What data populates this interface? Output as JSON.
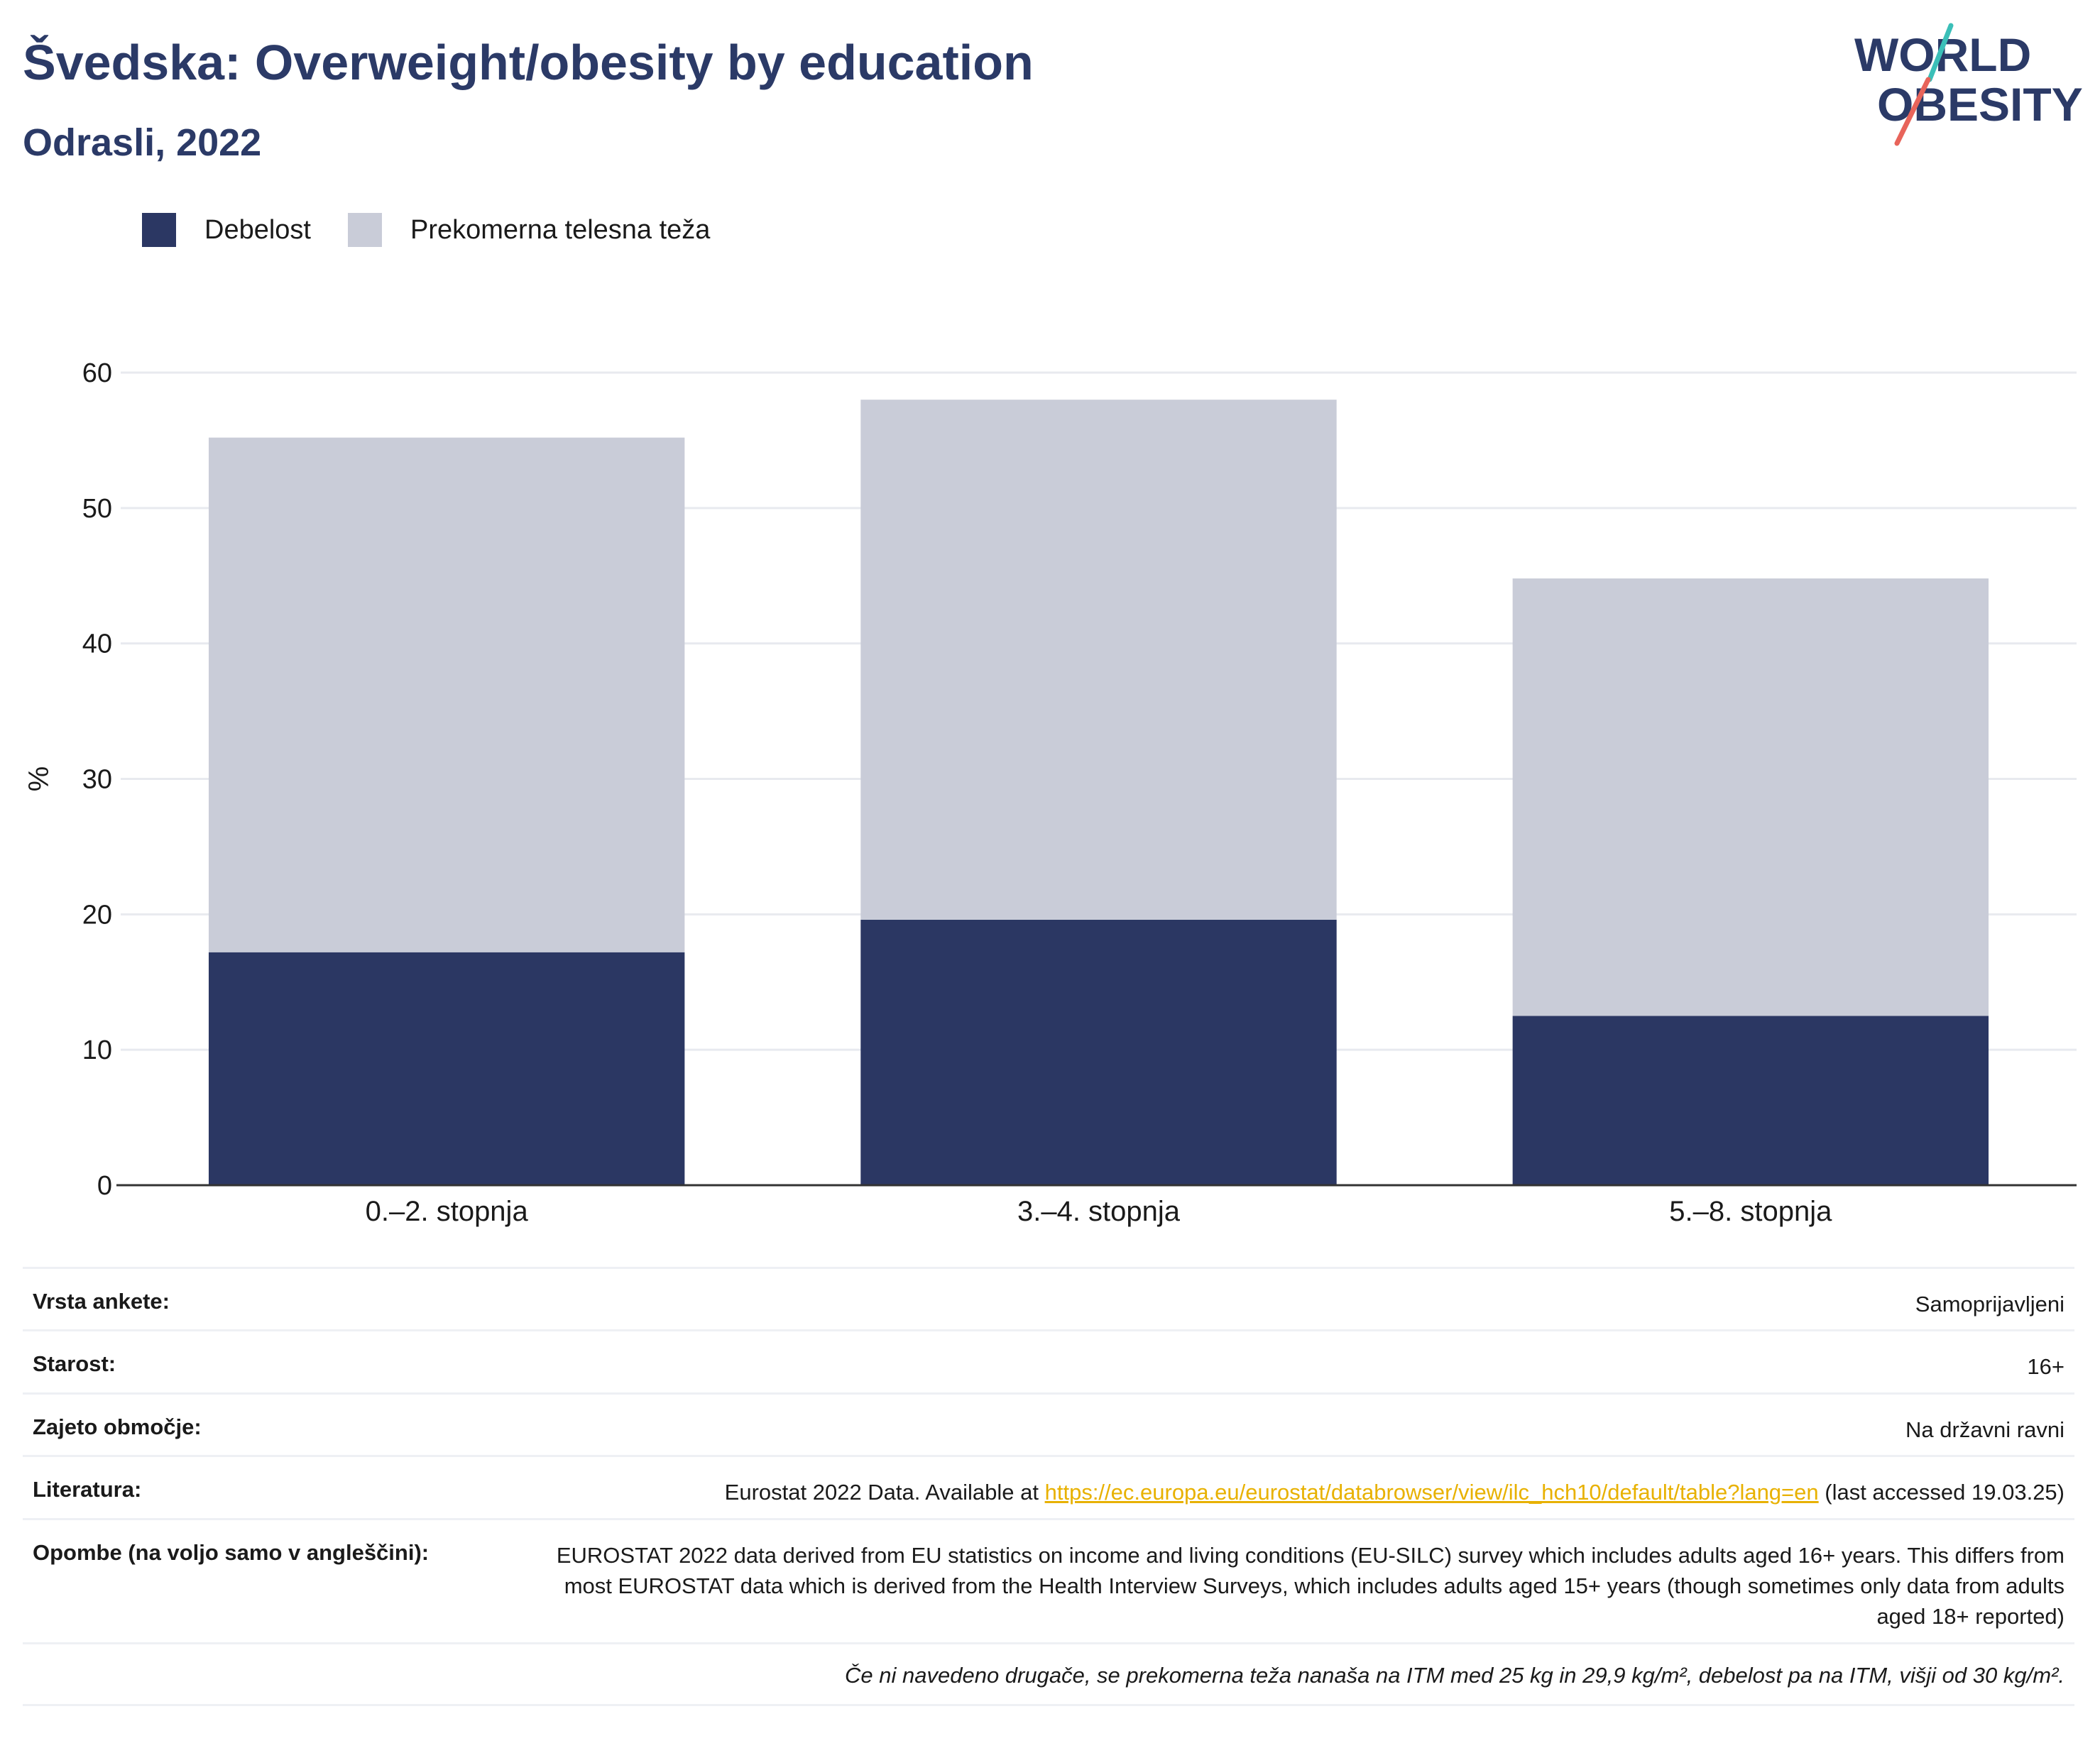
{
  "header": {
    "title": "Švedska: Overweight/obesity by education",
    "subtitle": "Odrasli, 2022"
  },
  "logo": {
    "line1": "WORLD",
    "line2": "OBESITY",
    "colors": {
      "text": "#2b3a67",
      "slash_teal": "#3bbfb8",
      "slash_red": "#e8645a"
    }
  },
  "legend": [
    {
      "label": "Debelost",
      "color": "#2b3763"
    },
    {
      "label": "Prekomerna telesna teža",
      "color": "#c9ccd8"
    }
  ],
  "chart_data": {
    "type": "bar",
    "stacked": true,
    "categories": [
      "0.–2. stopnja",
      "3.–4. stopnja",
      "5.–8. stopnja"
    ],
    "series": [
      {
        "name": "Debelost",
        "values": [
          17.2,
          19.6,
          12.5
        ],
        "color": "#2b3763"
      },
      {
        "name": "Prekomerna telesna teža",
        "values": [
          38.0,
          38.4,
          32.3
        ],
        "color": "#c9ccd8"
      }
    ],
    "totals": [
      55.2,
      58.0,
      44.8
    ],
    "ylabel": "%",
    "ylim": [
      0,
      60
    ],
    "yticks": [
      0,
      10,
      20,
      30,
      40,
      50,
      60
    ],
    "grid": true,
    "legend_position": "top-left"
  },
  "info": {
    "rows": [
      {
        "label": "Vrsta ankete:",
        "value": "Samoprijavljeni"
      },
      {
        "label": "Starost:",
        "value": "16+"
      },
      {
        "label": "Zajeto območje:",
        "value": "Na državni ravni"
      }
    ],
    "literature": {
      "label": "Literatura:",
      "prefix": "Eurostat 2022 Data. Available at ",
      "link": "https://ec.europa.eu/eurostat/databrowser/view/ilc_hch10/default/table?lang=en",
      "suffix": " (last accessed 19.03.25)"
    },
    "notes": {
      "label": "Opombe (na voljo samo v angleščini):",
      "value": "EUROSTAT 2022 data derived from EU statistics on income and living conditions (EU-SILC) survey which includes adults aged 16+ years. This differs from most EUROSTAT data which is derived from the Health Interview Surveys, which includes adults aged 15+ years (though sometimes only data from adults aged 18+ reported)"
    },
    "footnote": "Če ni navedeno drugače, se prekomerna teža nanaša na ITM med 25 kg in 29,9 kg/m², debelost pa na ITM, višji od 30 kg/m²."
  }
}
